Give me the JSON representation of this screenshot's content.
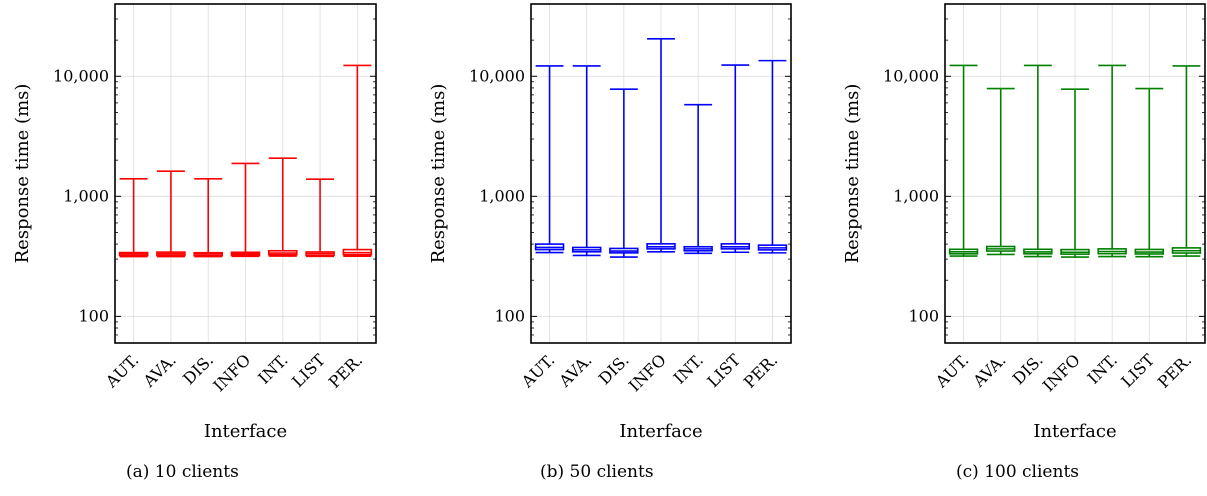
{
  "chart_data": [
    {
      "type": "box",
      "caption": "(a) 10 clients",
      "xlabel": "Interface",
      "ylabel": "Response time (ms)",
      "yscale": "log",
      "ylim": [
        60,
        40000
      ],
      "yticks": [
        100,
        1000,
        10000
      ],
      "yticklabels": [
        "100",
        "1,000",
        "10,000"
      ],
      "grid": true,
      "color": "#ff0000",
      "categories": [
        "AUT.",
        "AVA.",
        "DIS.",
        "INFO",
        "INT.",
        "LIST",
        "PER."
      ],
      "boxes": [
        {
          "whislo": 315,
          "q1": 322,
          "med": 332,
          "q3": 340,
          "whishi": 1400
        },
        {
          "whislo": 315,
          "q1": 322,
          "med": 333,
          "q3": 343,
          "whishi": 1620
        },
        {
          "whislo": 315,
          "q1": 321,
          "med": 331,
          "q3": 339,
          "whishi": 1400
        },
        {
          "whislo": 316,
          "q1": 323,
          "med": 333,
          "q3": 342,
          "whishi": 1880
        },
        {
          "whislo": 318,
          "q1": 326,
          "med": 337,
          "q3": 352,
          "whishi": 2080
        },
        {
          "whislo": 316,
          "q1": 323,
          "med": 334,
          "q3": 344,
          "whishi": 1390
        },
        {
          "whislo": 317,
          "q1": 326,
          "med": 339,
          "q3": 360,
          "whishi": 12300
        }
      ]
    },
    {
      "type": "box",
      "caption": "(b) 50 clients",
      "xlabel": "Interface",
      "ylabel": "Response time (ms)",
      "yscale": "log",
      "ylim": [
        60,
        40000
      ],
      "yticks": [
        100,
        1000,
        10000
      ],
      "yticklabels": [
        "100",
        "1,000",
        "10,000"
      ],
      "grid": true,
      "color": "#0000ff",
      "categories": [
        "AUT.",
        "AVA.",
        "DIS.",
        "INFO",
        "INT.",
        "LIST",
        "PER."
      ],
      "boxes": [
        {
          "whislo": 340,
          "q1": 360,
          "med": 375,
          "q3": 400,
          "whishi": 12200
        },
        {
          "whislo": 322,
          "q1": 345,
          "med": 358,
          "q3": 375,
          "whishi": 12200
        },
        {
          "whislo": 312,
          "q1": 338,
          "med": 350,
          "q3": 368,
          "whishi": 7800
        },
        {
          "whislo": 345,
          "q1": 365,
          "med": 380,
          "q3": 402,
          "whishi": 20500
        },
        {
          "whislo": 335,
          "q1": 352,
          "med": 365,
          "q3": 380,
          "whishi": 5800
        },
        {
          "whislo": 342,
          "q1": 365,
          "med": 380,
          "q3": 402,
          "whishi": 12400
        },
        {
          "whislo": 338,
          "q1": 358,
          "med": 372,
          "q3": 392,
          "whishi": 13500
        }
      ]
    },
    {
      "type": "box",
      "caption": "(c) 100 clients",
      "xlabel": "Interface",
      "ylabel": "Response time (ms)",
      "yscale": "log",
      "ylim": [
        60,
        40000
      ],
      "yticks": [
        100,
        1000,
        10000
      ],
      "yticklabels": [
        "100",
        "1,000",
        "10,000"
      ],
      "grid": true,
      "color": "#008000",
      "categories": [
        "AUT.",
        "AVA.",
        "DIS.",
        "INFO",
        "INT.",
        "LIST",
        "PER."
      ],
      "boxes": [
        {
          "whislo": 318,
          "q1": 332,
          "med": 345,
          "q3": 362,
          "whishi": 12300
        },
        {
          "whislo": 328,
          "q1": 350,
          "med": 365,
          "q3": 382,
          "whishi": 7900
        },
        {
          "whislo": 315,
          "q1": 332,
          "med": 344,
          "q3": 362,
          "whishi": 12300
        },
        {
          "whislo": 312,
          "q1": 330,
          "med": 342,
          "q3": 360,
          "whishi": 7800
        },
        {
          "whislo": 315,
          "q1": 333,
          "med": 347,
          "q3": 365,
          "whishi": 12300
        },
        {
          "whislo": 314,
          "q1": 331,
          "med": 343,
          "q3": 361,
          "whishi": 7900
        },
        {
          "whislo": 318,
          "q1": 337,
          "med": 352,
          "q3": 372,
          "whishi": 12200
        }
      ]
    }
  ]
}
